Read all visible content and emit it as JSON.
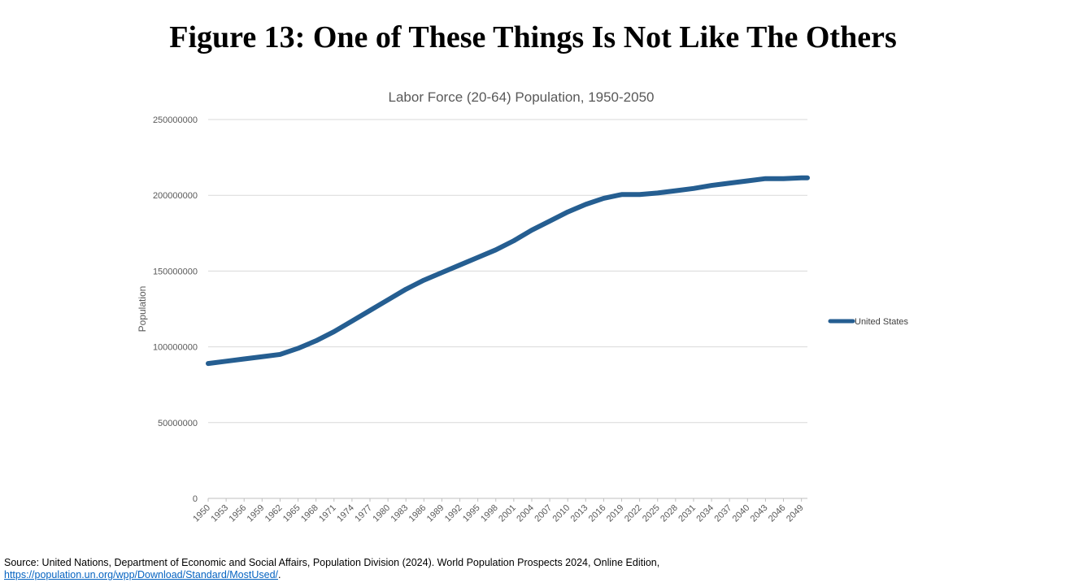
{
  "slide": {
    "title": "Figure 13: One of These Things Is Not Like The Others",
    "source_text": "Source: United Nations, Department of Economic and Social Affairs, Population Division (2024). World Population Prospects 2024, Online Edition,",
    "source_link": "https://population.un.org/wpp/Download/Standard/MostUsed/",
    "source_end": "."
  },
  "chart_data": {
    "type": "line",
    "title": "Labor Force (20-64) Population, 1950-2050",
    "xlabel": "",
    "ylabel": "Population",
    "ylim": [
      0,
      250000000
    ],
    "yticks": [
      "0",
      "50000000",
      "100000000",
      "150000000",
      "200000000",
      "250000000"
    ],
    "xtick_labels": [
      "1950",
      "1953",
      "1956",
      "1959",
      "1962",
      "1965",
      "1968",
      "1971",
      "1974",
      "1977",
      "1980",
      "1983",
      "1986",
      "1989",
      "1992",
      "1995",
      "1998",
      "2001",
      "2004",
      "2007",
      "2010",
      "2013",
      "2016",
      "2019",
      "2022",
      "2025",
      "2028",
      "2031",
      "2034",
      "2037",
      "2040",
      "2043",
      "2046",
      "2049"
    ],
    "grid": true,
    "legend_position": "right",
    "series": [
      {
        "name": "United States",
        "color": "#255e91",
        "x": [
          1950,
          1953,
          1956,
          1959,
          1962,
          1965,
          1968,
          1971,
          1974,
          1977,
          1980,
          1983,
          1986,
          1989,
          1992,
          1995,
          1998,
          2001,
          2004,
          2007,
          2010,
          2013,
          2016,
          2019,
          2022,
          2025,
          2028,
          2031,
          2034,
          2037,
          2040,
          2043,
          2046,
          2049,
          2050
        ],
        "values": [
          89000000,
          90500000,
          92000000,
          93500000,
          95000000,
          99000000,
          104000000,
          110000000,
          117000000,
          124000000,
          131000000,
          138000000,
          144000000,
          149000000,
          154000000,
          159000000,
          164000000,
          170000000,
          177000000,
          183000000,
          189000000,
          194000000,
          198000000,
          200500000,
          200500000,
          201500000,
          203000000,
          204500000,
          206500000,
          208000000,
          209500000,
          211000000,
          211000000,
          211500000,
          211500000
        ]
      }
    ]
  }
}
